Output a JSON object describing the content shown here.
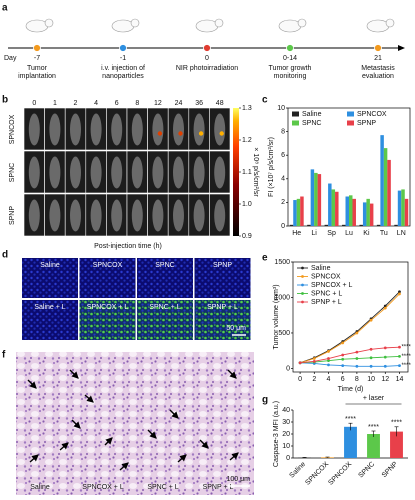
{
  "panel_labels": [
    "a",
    "b",
    "c",
    "d",
    "e",
    "f",
    "g"
  ],
  "timeline": {
    "day_label": "Day",
    "events": [
      {
        "day": "-7",
        "label": [
          "Tumor",
          "implantation"
        ]
      },
      {
        "day": "-1",
        "label": [
          "i.v. injection of",
          "nanoparticles"
        ]
      },
      {
        "day": "0",
        "label": [
          "NIR photoirradiation"
        ]
      },
      {
        "day": "0-14",
        "label": [
          "Tumor growth",
          "monitoring"
        ]
      },
      {
        "day": "21",
        "label": [
          "Metastasis",
          "evaluation"
        ]
      }
    ]
  },
  "imaging": {
    "times": [
      "0",
      "1",
      "2",
      "4",
      "6",
      "8",
      "12",
      "24",
      "36",
      "48"
    ],
    "rows": [
      "SPNCOX",
      "SPNC",
      "SPNP"
    ],
    "xlabel": "Post-injection time (h)",
    "colorbar": {
      "label": "× 10⁸ p/s/cm²/sr",
      "lim": [
        0.9,
        1.3
      ],
      "ticks": [
        0.9,
        {
          "value": 1,
          "label": "1.0"
        },
        1.1,
        1.2,
        1.3
      ]
    }
  },
  "micrographs": {
    "labels": [
      "Saline",
      "SPNCOX",
      "SPNC",
      "SPNP",
      "Saline + L",
      "SPNCOX + L",
      "SPNC + L",
      "SPNP + L"
    ],
    "scale_bar": "50 μm"
  },
  "histology": {
    "labels": [
      "Saline",
      "SPNCOX + L",
      "SPNC + L",
      "SPNP + L"
    ],
    "scale_bar": "100 μm"
  },
  "chart_data": [
    {
      "type": "bar",
      "ylabel": "FI (×10⁷ p/s/cm²/sr)",
      "categories": [
        "He",
        "Li",
        "Sp",
        "Lu",
        "Ki",
        "Tu",
        "LN"
      ],
      "series": [
        {
          "name": "Saline",
          "color": "#222222",
          "values": [
            0.1,
            0.1,
            0.1,
            0.1,
            0.1,
            0.1,
            0.1
          ]
        },
        {
          "name": "SPNCOX",
          "color": "#2e8fe0",
          "values": [
            2.2,
            4.8,
            3.6,
            2.5,
            2.0,
            7.7,
            3.0
          ]
        },
        {
          "name": "SPNC",
          "color": "#5cc84a",
          "values": [
            2.3,
            4.5,
            3.1,
            2.6,
            2.3,
            6.6,
            3.1
          ]
        },
        {
          "name": "SPNP",
          "color": "#e8404a",
          "values": [
            2.5,
            4.4,
            2.9,
            2.3,
            1.9,
            5.6,
            2.3
          ]
        }
      ],
      "ylim": [
        0,
        10
      ],
      "yticks": [
        0,
        2,
        4,
        6,
        8,
        10
      ],
      "legend": "top"
    },
    {
      "type": "line",
      "xlabel": "Time (d)",
      "ylabel": "Tumor volume (mm³)",
      "x": [
        0,
        2,
        4,
        6,
        8,
        10,
        12,
        14
      ],
      "series": [
        {
          "name": "Saline",
          "color": "#222222",
          "values": [
            80,
            150,
            250,
            380,
            520,
            700,
            880,
            1080
          ]
        },
        {
          "name": "SPNCOX",
          "color": "#f39a1e",
          "values": [
            80,
            140,
            240,
            360,
            500,
            680,
            850,
            1050
          ]
        },
        {
          "name": "SPNCOX + L",
          "color": "#2e8fe0",
          "values": [
            80,
            70,
            50,
            40,
            30,
            30,
            30,
            40
          ]
        },
        {
          "name": "SPNC + L",
          "color": "#3fbf3f",
          "values": [
            80,
            90,
            110,
            130,
            140,
            150,
            160,
            170
          ]
        },
        {
          "name": "SPNP + L",
          "color": "#e8404a",
          "values": [
            80,
            100,
            140,
            190,
            230,
            270,
            290,
            300
          ]
        }
      ],
      "xlim": [
        -1,
        15.2
      ],
      "ylim": [
        -50,
        1500
      ],
      "xticks": [
        0,
        2,
        4,
        6,
        8,
        10,
        12,
        14
      ],
      "yticks": [
        0,
        500,
        1000,
        1500
      ],
      "annotations": [
        "****",
        "****",
        "****"
      ],
      "legend": "upper left"
    },
    {
      "type": "bar",
      "ylabel": "Caspase-3 MFI (a.u.)",
      "categories": [
        "Saline",
        "SPNCOX",
        "SPNCOX",
        "SPNC",
        "SPNP"
      ],
      "values": [
        0.3,
        0.5,
        26,
        20,
        22
      ],
      "errors": [
        0.2,
        0.3,
        3,
        2.5,
        4
      ],
      "colors": [
        "#222222",
        "#f39a1e",
        "#2e8fe0",
        "#5cc84a",
        "#e8404a"
      ],
      "ylim": [
        0,
        40
      ],
      "yticks": [
        0,
        10,
        20,
        30,
        40
      ],
      "bracket_label": "+ laser",
      "annotations": [
        "****",
        "****",
        "****"
      ]
    }
  ]
}
